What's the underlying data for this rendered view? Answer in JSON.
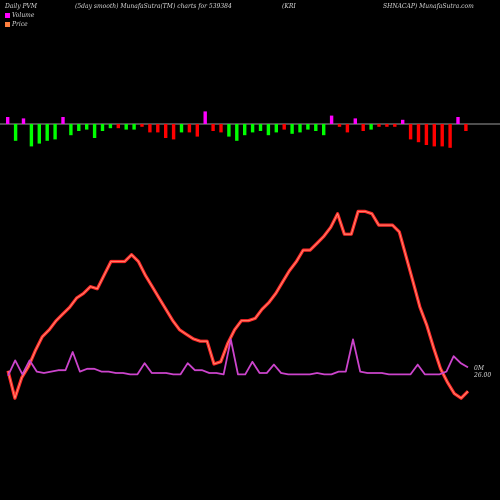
{
  "header": {
    "left": "Daily PVM",
    "mid": "(5day smooth) MunafaSutra(TM) charts for 539384",
    "right_a": "(KRI",
    "right_b": "SHNACAP) MunafaSutra.com"
  },
  "legend": [
    {
      "label": "Volume",
      "color": "#ff00ff"
    },
    {
      "label": "Price",
      "color": "#ff7f3f"
    }
  ],
  "end_label": "0M 26.00",
  "chart_data": {
    "type": "bar+line",
    "bar_colors": {
      "up": "#00ff00",
      "down": "#ff0000",
      "flat": "#ff00ff"
    },
    "volume_bars": [
      {
        "dir": "flat",
        "v": 0.5
      },
      {
        "dir": "up",
        "v": -1.2
      },
      {
        "dir": "flat",
        "v": 0.4
      },
      {
        "dir": "up",
        "v": -1.6
      },
      {
        "dir": "up",
        "v": -1.4
      },
      {
        "dir": "up",
        "v": -1.2
      },
      {
        "dir": "up",
        "v": -1.1
      },
      {
        "dir": "flat",
        "v": 0.5
      },
      {
        "dir": "up",
        "v": -0.8
      },
      {
        "dir": "up",
        "v": -0.5
      },
      {
        "dir": "up",
        "v": -0.4
      },
      {
        "dir": "up",
        "v": -1.0
      },
      {
        "dir": "up",
        "v": -0.5
      },
      {
        "dir": "up",
        "v": -0.3
      },
      {
        "dir": "down",
        "v": -0.3
      },
      {
        "dir": "up",
        "v": -0.4
      },
      {
        "dir": "up",
        "v": -0.4
      },
      {
        "dir": "down",
        "v": -0.2
      },
      {
        "dir": "down",
        "v": -0.6
      },
      {
        "dir": "down",
        "v": -0.6
      },
      {
        "dir": "down",
        "v": -1.0
      },
      {
        "dir": "down",
        "v": -1.1
      },
      {
        "dir": "up",
        "v": -0.6
      },
      {
        "dir": "down",
        "v": -0.6
      },
      {
        "dir": "down",
        "v": -0.9
      },
      {
        "dir": "flat",
        "v": 0.9
      },
      {
        "dir": "down",
        "v": -0.5
      },
      {
        "dir": "down",
        "v": -0.6
      },
      {
        "dir": "up",
        "v": -0.9
      },
      {
        "dir": "up",
        "v": -1.2
      },
      {
        "dir": "up",
        "v": -0.8
      },
      {
        "dir": "up",
        "v": -0.6
      },
      {
        "dir": "up",
        "v": -0.5
      },
      {
        "dir": "up",
        "v": -0.8
      },
      {
        "dir": "up",
        "v": -0.6
      },
      {
        "dir": "down",
        "v": -0.4
      },
      {
        "dir": "up",
        "v": -0.7
      },
      {
        "dir": "up",
        "v": -0.6
      },
      {
        "dir": "up",
        "v": -0.4
      },
      {
        "dir": "up",
        "v": -0.5
      },
      {
        "dir": "up",
        "v": -0.8
      },
      {
        "dir": "flat",
        "v": 0.6
      },
      {
        "dir": "down",
        "v": -0.2
      },
      {
        "dir": "down",
        "v": -0.6
      },
      {
        "dir": "flat",
        "v": 0.4
      },
      {
        "dir": "down",
        "v": -0.5
      },
      {
        "dir": "up",
        "v": -0.4
      },
      {
        "dir": "down",
        "v": -0.2
      },
      {
        "dir": "down",
        "v": -0.2
      },
      {
        "dir": "down",
        "v": -0.2
      },
      {
        "dir": "flat",
        "v": 0.3
      },
      {
        "dir": "down",
        "v": -1.1
      },
      {
        "dir": "down",
        "v": -1.3
      },
      {
        "dir": "down",
        "v": -1.5
      },
      {
        "dir": "down",
        "v": -1.6
      },
      {
        "dir": "down",
        "v": -1.6
      },
      {
        "dir": "down",
        "v": -1.7
      },
      {
        "dir": "flat",
        "v": 0.5
      },
      {
        "dir": "down",
        "v": -0.5
      }
    ],
    "price_line": [
      21.0,
      19.8,
      20.7,
      21.2,
      21.9,
      22.5,
      22.8,
      23.2,
      23.5,
      23.8,
      24.2,
      24.4,
      24.7,
      24.6,
      25.2,
      25.8,
      25.8,
      25.8,
      26.1,
      25.8,
      25.2,
      24.7,
      24.2,
      23.7,
      23.2,
      22.8,
      22.6,
      22.4,
      22.3,
      22.3,
      21.3,
      21.4,
      22.2,
      22.8,
      23.2,
      23.2,
      23.3,
      23.7,
      24.0,
      24.4,
      24.9,
      25.4,
      25.8,
      26.3,
      26.3,
      26.6,
      26.9,
      27.3,
      27.9,
      27.0,
      27.0,
      28.0,
      28.0,
      27.9,
      27.4,
      27.4,
      27.4,
      27.1,
      26.0,
      24.9,
      23.8,
      23.0,
      22.0,
      21.1,
      20.5,
      20.0,
      19.8,
      20.1
    ],
    "volume_line": [
      0.3,
      1.4,
      0.4,
      1.4,
      0.6,
      0.5,
      0.6,
      0.7,
      0.7,
      2.0,
      0.6,
      0.8,
      0.8,
      0.6,
      0.6,
      0.5,
      0.5,
      0.4,
      0.4,
      1.2,
      0.5,
      0.5,
      0.5,
      0.4,
      0.4,
      1.2,
      0.7,
      0.7,
      0.5,
      0.5,
      0.4,
      2.9,
      0.4,
      0.4,
      1.3,
      0.5,
      0.5,
      1.1,
      0.5,
      0.4,
      0.4,
      0.4,
      0.4,
      0.5,
      0.4,
      0.4,
      0.6,
      0.6,
      2.9,
      0.6,
      0.5,
      0.5,
      0.5,
      0.4,
      0.4,
      0.4,
      0.4,
      1.1,
      0.4,
      0.4,
      0.4,
      0.6,
      1.7,
      1.2,
      0.9
    ],
    "price_range": [
      19.5,
      28.5
    ],
    "grid": false
  }
}
